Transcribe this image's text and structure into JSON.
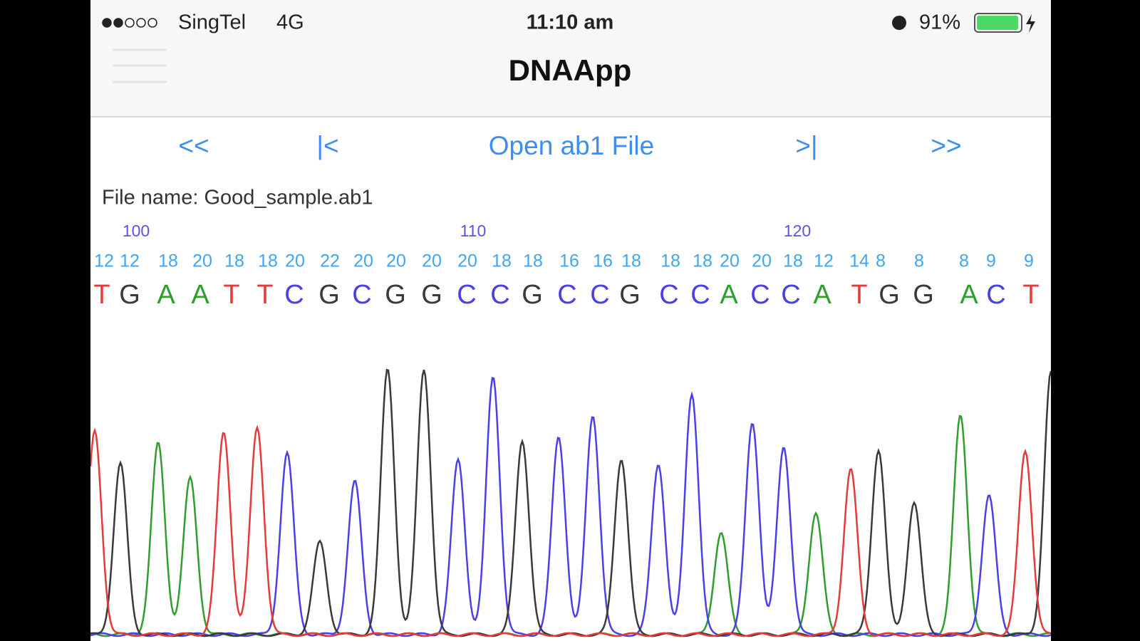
{
  "status_bar": {
    "carrier": "SingTel",
    "network": "4G",
    "time": "11:10 am",
    "battery": "91%"
  },
  "nav_bar": {
    "title": "DNAApp"
  },
  "toolbar": {
    "buttons": [
      "<<",
      "|<",
      "Open ab1 File",
      ">|",
      ">>"
    ]
  },
  "file_name": "File name: Good_sample.ab1",
  "sequence": {
    "positions": [
      null,
      "100",
      null,
      null,
      null,
      null,
      null,
      null,
      null,
      null,
      null,
      "110",
      null,
      null,
      null,
      null,
      null,
      null,
      null,
      null,
      null,
      "120",
      null,
      null,
      null,
      null,
      null,
      null,
      null
    ],
    "qualities": [
      12,
      12,
      18,
      20,
      18,
      18,
      20,
      22,
      20,
      20,
      20,
      20,
      18,
      18,
      16,
      16,
      18,
      18,
      18,
      20,
      20,
      18,
      12,
      14,
      8,
      8,
      8,
      9,
      9
    ],
    "bases": [
      "T",
      "G",
      "A",
      "A",
      "T",
      "T",
      "C",
      "G",
      "C",
      "G",
      "G",
      "C",
      "C",
      "G",
      "C",
      "C",
      "G",
      "C",
      "C",
      "A",
      "C",
      "C",
      "A",
      "T",
      "G",
      "G",
      "A",
      "C",
      "T"
    ]
  }
}
